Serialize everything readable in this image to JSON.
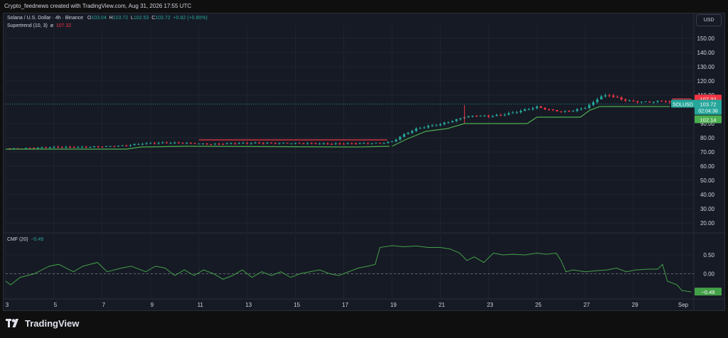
{
  "credit": "Crypto_feednews created with TradingView.com, Aug 31, 2026 17:55 UTC",
  "legend": {
    "title": "Solana / U.S. Dollar · 4h · Binance",
    "o_label": "O",
    "o": "103.04",
    "h_label": "H",
    "h": "103.72",
    "l_label": "L",
    "l": "102.53",
    "c_label": "C",
    "c": "103.72",
    "change": "+0.82 (+0.80%)",
    "supertrend_label": "Supertrend (10, 3)",
    "supertrend_symbol": "ø",
    "supertrend_value": "107.32"
  },
  "currency_button": "USD",
  "price_tags": {
    "supertrend_upper": "107.32",
    "symbol": "SOLUSD",
    "last_price": "103.72",
    "countdown": "02:04:38",
    "supertrend_lower": "102.14"
  },
  "cmf": {
    "label": "CMF (20)",
    "value": "−0.49",
    "tag": "−0.49"
  },
  "brand": "TradingView",
  "colors": {
    "up": "#26a69a",
    "down": "#f23645",
    "supertrend_up": "#4caf50",
    "cmf_line": "#43a047",
    "grid": "#1f2430",
    "axis_text": "#d1d4dc"
  },
  "chart_data": [
    {
      "type": "candlestick",
      "title": "Solana / U.S. Dollar · 4h · Binance",
      "ylim": [
        15,
        155
      ],
      "y_ticks": [
        20,
        30,
        40,
        50,
        60,
        70,
        80,
        90,
        110,
        120,
        130,
        140,
        150
      ],
      "y_tick_labels": [
        "20.00",
        "30.00",
        "40.00",
        "50.00",
        "60.00",
        "70.00",
        "80.00",
        "90.00",
        "110.00",
        "120.00",
        "130.00",
        "140.00",
        "150.00"
      ],
      "x_domain": [
        3,
        31.5
      ],
      "x_ticks": [
        3,
        5,
        7,
        9,
        11,
        13,
        15,
        17,
        19,
        21,
        23,
        25,
        27,
        29,
        31
      ],
      "x_tick_labels": [
        "3",
        "5",
        "7",
        "9",
        "11",
        "13",
        "15",
        "17",
        "19",
        "21",
        "23",
        "25",
        "27",
        "29",
        "Sep"
      ],
      "price_path": [
        [
          3.0,
          72.5
        ],
        [
          4.0,
          73.0
        ],
        [
          5.0,
          73.4
        ],
        [
          6.0,
          73.2
        ],
        [
          7.0,
          73.5
        ],
        [
          8.0,
          74.2
        ],
        [
          8.6,
          75.5
        ],
        [
          9.5,
          76.2
        ],
        [
          10.5,
          76.3
        ],
        [
          11.5,
          75.7
        ],
        [
          12.5,
          76.4
        ],
        [
          13.5,
          76.6
        ],
        [
          14.5,
          76.5
        ],
        [
          15.5,
          76.1
        ],
        [
          16.5,
          75.5
        ],
        [
          17.5,
          75.7
        ],
        [
          18.5,
          75.9
        ],
        [
          19.0,
          77.0
        ],
        [
          19.5,
          82.0
        ],
        [
          20.0,
          86.0
        ],
        [
          20.5,
          88.0
        ],
        [
          21.0,
          89.5
        ],
        [
          21.6,
          92.5
        ],
        [
          22.0,
          95.0
        ],
        [
          22.5,
          96.0
        ],
        [
          23.0,
          95.5
        ],
        [
          23.5,
          96.5
        ],
        [
          24.0,
          98.0
        ],
        [
          24.5,
          100.0
        ],
        [
          25.0,
          102.0
        ],
        [
          25.5,
          100.0
        ],
        [
          26.0,
          98.5
        ],
        [
          26.5,
          99.0
        ],
        [
          27.0,
          101.0
        ],
        [
          27.3,
          104.0
        ],
        [
          27.6,
          108.5
        ],
        [
          28.0,
          109.5
        ],
        [
          28.5,
          106.5
        ],
        [
          29.0,
          105.0
        ],
        [
          29.5,
          104.8
        ],
        [
          30.0,
          105.2
        ],
        [
          30.4,
          105.6
        ],
        [
          30.7,
          102.8
        ],
        [
          31.0,
          103.0
        ],
        [
          31.4,
          103.7
        ]
      ],
      "supertrend": [
        {
          "trend": "up",
          "points": [
            [
              3.0,
              72.0
            ],
            [
              8.0,
              72.0
            ],
            [
              8.6,
              73.5
            ],
            [
              10.5,
              74.0
            ],
            [
              17.5,
              73.5
            ],
            [
              18.9,
              74.0
            ]
          ]
        },
        {
          "trend": "down",
          "points": [
            [
              11.0,
              78.5
            ],
            [
              18.8,
              78.5
            ]
          ]
        },
        {
          "trend": "up",
          "points": [
            [
              19.0,
              74.0
            ],
            [
              19.6,
              79.0
            ],
            [
              20.4,
              84.5
            ],
            [
              21.3,
              86.5
            ],
            [
              22.0,
              90.0
            ],
            [
              24.6,
              90.0
            ],
            [
              25.0,
              94.5
            ],
            [
              26.8,
              94.5
            ],
            [
              27.2,
              99.5
            ],
            [
              27.6,
              102.0
            ],
            [
              30.5,
              102.0
            ]
          ]
        },
        {
          "trend": "down",
          "points": [
            [
              30.6,
              107.3
            ],
            [
              31.4,
              107.3
            ]
          ]
        }
      ],
      "last_price": 103.72,
      "supertrend_value": 107.32,
      "supertrend_lower_tag": 102.14
    },
    {
      "type": "line",
      "title": "CMF (20)",
      "ylim": [
        -0.62,
        0.9
      ],
      "y_ticks": [
        0.5,
        0.0
      ],
      "y_tick_labels": [
        "0.50",
        "0.00"
      ],
      "zero_line": 0.0,
      "points": [
        [
          3.0,
          -0.2
        ],
        [
          3.2,
          -0.3
        ],
        [
          3.6,
          -0.1
        ],
        [
          4.2,
          0.0
        ],
        [
          4.8,
          0.2
        ],
        [
          5.2,
          0.25
        ],
        [
          5.8,
          0.05
        ],
        [
          6.2,
          0.2
        ],
        [
          6.8,
          0.3
        ],
        [
          7.2,
          0.05
        ],
        [
          7.8,
          0.15
        ],
        [
          8.2,
          0.2
        ],
        [
          8.8,
          0.05
        ],
        [
          9.2,
          0.2
        ],
        [
          9.6,
          0.15
        ],
        [
          10.0,
          -0.05
        ],
        [
          10.4,
          0.1
        ],
        [
          10.8,
          -0.05
        ],
        [
          11.2,
          0.1
        ],
        [
          11.6,
          0.0
        ],
        [
          12.0,
          -0.15
        ],
        [
          12.4,
          -0.05
        ],
        [
          12.8,
          0.1
        ],
        [
          13.2,
          -0.1
        ],
        [
          13.6,
          0.05
        ],
        [
          14.0,
          -0.05
        ],
        [
          14.4,
          0.05
        ],
        [
          14.8,
          -0.1
        ],
        [
          15.2,
          0.0
        ],
        [
          15.6,
          0.05
        ],
        [
          16.0,
          0.1
        ],
        [
          16.4,
          0.0
        ],
        [
          16.8,
          -0.05
        ],
        [
          17.2,
          0.05
        ],
        [
          17.6,
          0.15
        ],
        [
          18.0,
          0.2
        ],
        [
          18.3,
          0.25
        ],
        [
          18.5,
          0.7
        ],
        [
          19.0,
          0.75
        ],
        [
          19.5,
          0.72
        ],
        [
          20.0,
          0.74
        ],
        [
          20.5,
          0.7
        ],
        [
          21.0,
          0.7
        ],
        [
          21.4,
          0.66
        ],
        [
          21.8,
          0.55
        ],
        [
          22.1,
          0.35
        ],
        [
          22.4,
          0.45
        ],
        [
          22.8,
          0.3
        ],
        [
          23.2,
          0.55
        ],
        [
          23.6,
          0.5
        ],
        [
          24.0,
          0.52
        ],
        [
          24.5,
          0.5
        ],
        [
          25.0,
          0.55
        ],
        [
          25.4,
          0.52
        ],
        [
          25.8,
          0.55
        ],
        [
          26.0,
          0.35
        ],
        [
          26.2,
          0.05
        ],
        [
          26.5,
          0.1
        ],
        [
          27.0,
          0.05
        ],
        [
          27.5,
          0.08
        ],
        [
          27.9,
          0.1
        ],
        [
          28.3,
          0.15
        ],
        [
          28.7,
          0.05
        ],
        [
          29.1,
          0.1
        ],
        [
          29.6,
          0.12
        ],
        [
          30.0,
          0.12
        ],
        [
          30.2,
          0.25
        ],
        [
          30.4,
          -0.2
        ],
        [
          30.8,
          -0.3
        ],
        [
          31.0,
          -0.45
        ],
        [
          31.4,
          -0.49
        ]
      ],
      "last_value": -0.49
    }
  ]
}
